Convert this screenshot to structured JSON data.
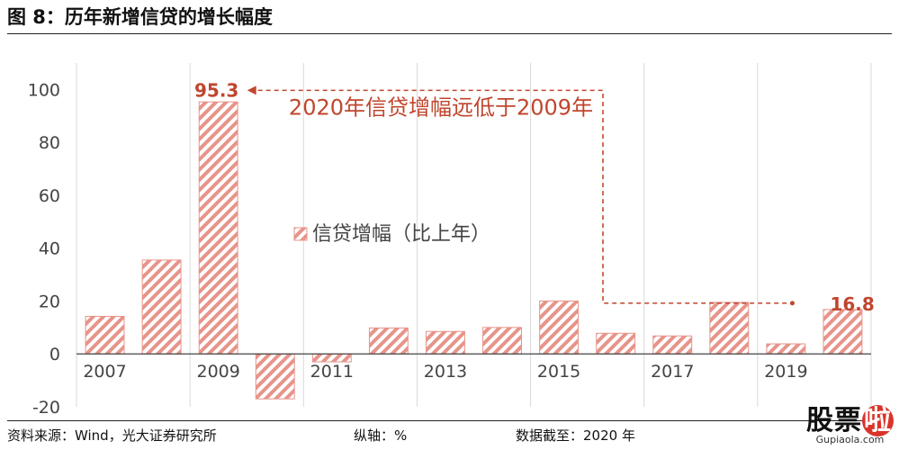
{
  "figure": {
    "title": "图 8：历年新增信贷的增长幅度"
  },
  "chart_data": {
    "type": "bar",
    "categories": [
      "2007",
      "2008",
      "2009",
      "2010",
      "2011",
      "2012",
      "2013",
      "2014",
      "2015",
      "2016",
      "2017",
      "2018",
      "2019",
      "2020"
    ],
    "tick_labels": [
      "2007",
      "2009",
      "2011",
      "2013",
      "2015",
      "2017",
      "2019"
    ],
    "series": [
      {
        "name": "信贷增幅（比上年）",
        "values": [
          14.2,
          35.5,
          95.3,
          -17.0,
          -3.0,
          9.8,
          8.5,
          10.0,
          20.0,
          7.8,
          6.8,
          19.5,
          3.8,
          16.8
        ]
      }
    ],
    "ylim": [
      -20,
      110
    ],
    "yticks": [
      -20,
      0,
      20,
      40,
      60,
      80,
      100
    ],
    "grid": "vertical",
    "legend": "center",
    "fill": "diagonal-hatch",
    "colors": {
      "bar": "#e7948a",
      "annotation": "#c0462e",
      "axis": "#444444"
    },
    "data_labels": [
      {
        "category": "2009",
        "text": "95.3"
      },
      {
        "category": "2020",
        "text": "16.8"
      }
    ],
    "annotation": "2020年信贷增幅远低于2009年"
  },
  "footer": {
    "source": "资料来源：Wind，光大证券研究所",
    "axis_note": "纵轴：%",
    "date_note": "数据截至：2020 年"
  },
  "watermark": {
    "main": "股票",
    "accent": "啦",
    "url": "Gupiaola.com"
  }
}
